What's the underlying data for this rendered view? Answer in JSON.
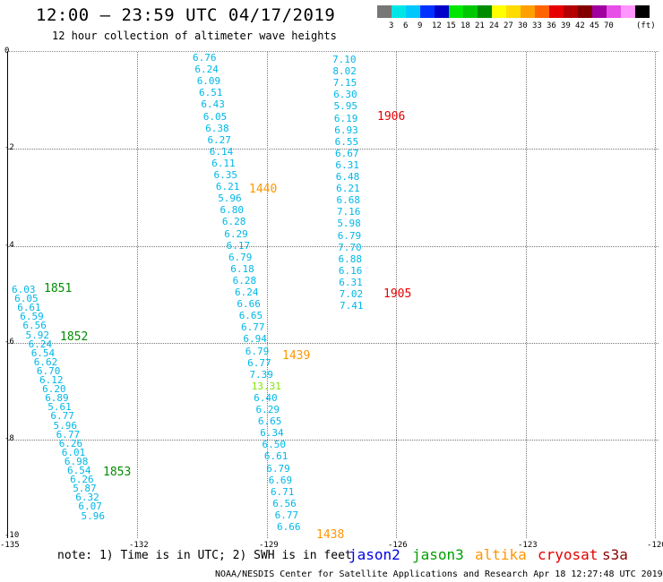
{
  "title": "12:00 — 23:59 UTC 04/17/2019",
  "subtitle": "12 hour collection of altimeter wave heights",
  "colorbar": {
    "colors": [
      "#777777",
      "#00e6e6",
      "#00c8ff",
      "#0032ff",
      "#0000c8",
      "#00e600",
      "#00c800",
      "#008c00",
      "#ffff00",
      "#ffdc00",
      "#ffa000",
      "#ff6400",
      "#e60000",
      "#b40000",
      "#820000",
      "#a000a0",
      "#e650e6",
      "#ff96ff",
      "#000000"
    ],
    "labels": [
      "3",
      "6",
      "9",
      "12",
      "15",
      "18",
      "21",
      "24",
      "27",
      "30",
      "33",
      "36",
      "39",
      "42",
      "45",
      "70"
    ],
    "unit": "(ft)"
  },
  "y_ticks": [
    "0",
    "-2",
    "-4",
    "-6",
    "-8",
    "-10"
  ],
  "x_ticks": [
    "-135",
    "-132",
    "-129",
    "-126",
    "-123",
    "-120"
  ],
  "tracks": [
    {
      "values": [
        "6.76",
        "6.24",
        "6.09",
        "6.51",
        "6.43",
        "6.05",
        "6.38",
        "6.27",
        "6.14",
        "6.11",
        "6.35",
        "6.21",
        "5.96",
        "6.80",
        "6.28",
        "6.29",
        "6.17",
        "6.79",
        "6.18",
        "6.28",
        "6.24",
        "6.66",
        "6.65",
        "6.77",
        "6.94",
        "6.79",
        "6.77",
        "7.39",
        "13.31",
        "6.40",
        "6.29",
        "6.65",
        "6.34",
        "6.50",
        "6.61",
        "6.79",
        "6.69",
        "6.71",
        "6.56",
        "6.77",
        "6.66"
      ]
    },
    {
      "values": [
        "7.10",
        "8.02",
        "7.15",
        "6.30",
        "5.95",
        "6.19",
        "6.93",
        "6.55",
        "6.67",
        "6.31",
        "6.48",
        "6.21",
        "6.68",
        "7.16",
        "5.98",
        "6.79",
        "7.70",
        "6.88",
        "6.16",
        "6.31",
        "7.02",
        "7.41"
      ]
    },
    {
      "values": [
        "6.03",
        "6.05",
        "6.61",
        "6.59",
        "6.56",
        "5.92",
        "6.24",
        "6.54",
        "6.62",
        "6.70",
        "6.12",
        "6.20",
        "6.89",
        "5.61",
        "6.77",
        "5.96",
        "6.77",
        "6.26",
        "6.01",
        "6.98",
        "6.54",
        "6.26",
        "5.87",
        "6.32",
        "6.07",
        "5.96"
      ]
    }
  ],
  "time_labels": [
    "1906",
    "1440",
    "1851",
    "1905",
    "1852",
    "1439",
    "1853",
    "1438"
  ],
  "time_colors": {
    "jason3": "#008c00",
    "altika": "#ff9600",
    "cryosat": "#e60000"
  },
  "note": "note: 1) Time is in UTC; 2) SWH is in feet",
  "legend": [
    {
      "label": "jason2",
      "color": "#0000e6"
    },
    {
      "label": "jason3",
      "color": "#00a000"
    },
    {
      "label": "altika",
      "color": "#ff9600"
    },
    {
      "label": "cryosat",
      "color": "#e60000"
    },
    {
      "label": "s3a",
      "color": "#8c0000"
    }
  ],
  "credit": "NOAA/NESDIS Center for Satellite Applications and Research     Apr 18 12:27:48 UTC 2019"
}
